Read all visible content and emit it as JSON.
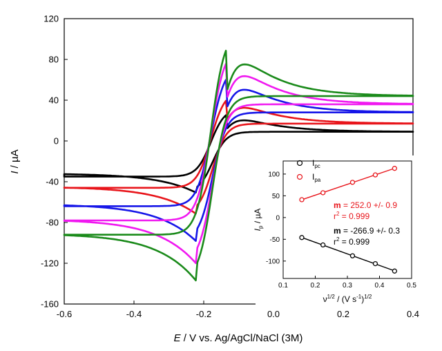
{
  "chart_data": [
    {
      "type": "line",
      "role": "main",
      "xlabel_italic": "E",
      "xlabel": " / V vs. Ag/AgCl/NaCl (3M)",
      "ylabel_italic": "I",
      "ylabel": " / µA",
      "xlim": [
        -0.6,
        0.4
      ],
      "ylim": [
        -160,
        120
      ],
      "xticks": [
        "-0.6",
        "-0.4",
        "-0.2",
        "0.0",
        "0.2",
        "0.4"
      ],
      "yticks": [
        "-160",
        "-120",
        "-80",
        "-40",
        "0",
        "40",
        "80",
        "120"
      ],
      "grid": false,
      "legend": "none",
      "series": [
        {
          "color": "#000000",
          "vertex_pos": {
            "x": 0.4,
            "y": 8
          },
          "vertex_neg": {
            "x": -0.6,
            "y": -35
          },
          "anodic_peak": {
            "x": -0.135,
            "y": 32
          },
          "anodic_end": {
            "x": 0.4,
            "y": 9
          },
          "cathodic_peak": {
            "x": -0.22,
            "y": -51
          },
          "cathodic_end": {
            "x": -0.6,
            "y": -32
          },
          "cathodic_start": {
            "x": 0.4,
            "y": 9
          },
          "anodic_start": {
            "x": -0.6,
            "y": -35
          }
        },
        {
          "color": "#e8141a",
          "vertex_pos": {
            "x": 0.4,
            "y": 16
          },
          "vertex_neg": {
            "x": -0.6,
            "y": -46
          },
          "anodic_peak": {
            "x": -0.135,
            "y": 49
          },
          "anodic_end": {
            "x": 0.4,
            "y": 17
          },
          "cathodic_peak": {
            "x": -0.22,
            "y": -72
          },
          "cathodic_end": {
            "x": -0.6,
            "y": -45
          },
          "cathodic_start": {
            "x": 0.4,
            "y": 17
          },
          "anodic_start": {
            "x": -0.6,
            "y": -46
          }
        },
        {
          "color": "#1515e8",
          "vertex_pos": {
            "x": 0.4,
            "y": 28
          },
          "vertex_neg": {
            "x": -0.6,
            "y": -64
          },
          "anodic_peak": {
            "x": -0.135,
            "y": 74
          },
          "anodic_end": {
            "x": 0.4,
            "y": 28
          },
          "cathodic_peak": {
            "x": -0.22,
            "y": -99
          },
          "cathodic_end": {
            "x": -0.6,
            "y": -62
          },
          "cathodic_start": {
            "x": 0.4,
            "y": 28
          },
          "anodic_start": {
            "x": -0.6,
            "y": -64
          }
        },
        {
          "color": "#f018f0",
          "vertex_pos": {
            "x": 0.4,
            "y": 36
          },
          "vertex_neg": {
            "x": -0.6,
            "y": -78
          },
          "anodic_peak": {
            "x": -0.135,
            "y": 93
          },
          "anodic_end": {
            "x": 0.4,
            "y": 36
          },
          "cathodic_peak": {
            "x": -0.22,
            "y": -121
          },
          "cathodic_end": {
            "x": -0.6,
            "y": -77
          },
          "cathodic_start": {
            "x": 0.4,
            "y": 36
          },
          "anodic_start": {
            "x": -0.6,
            "y": -78
          }
        },
        {
          "color": "#1a8a1a",
          "vertex_pos": {
            "x": 0.4,
            "y": 44
          },
          "vertex_neg": {
            "x": -0.6,
            "y": -92
          },
          "anodic_peak": {
            "x": -0.135,
            "y": 109
          },
          "anodic_end": {
            "x": 0.4,
            "y": 44
          },
          "cathodic_peak": {
            "x": -0.22,
            "y": -138
          },
          "cathodic_end": {
            "x": -0.6,
            "y": -91
          },
          "cathodic_start": {
            "x": 0.4,
            "y": 44
          },
          "anodic_start": {
            "x": -0.6,
            "y": -92
          }
        }
      ]
    },
    {
      "type": "scatter",
      "role": "inset",
      "xlabel": "ν",
      "xlabel_sup1": "1/2",
      "xlabel_mid": " / (V s",
      "xlabel_sup2": "-1",
      "xlabel_end": ")",
      "xlabel_sup3": "1/2",
      "ylabel_italic": "I",
      "ylabel_sub": "p",
      "ylabel": " / µA",
      "xlim": [
        0.1,
        0.5
      ],
      "ylim": [
        -140,
        130
      ],
      "xticks": [
        "0.1",
        "0.2",
        "0.3",
        "0.4",
        "0.5"
      ],
      "yticks": [
        "-100",
        "-50",
        "0",
        "50",
        "100"
      ],
      "legend": "top-left",
      "series": [
        {
          "name": "I",
          "name_sub": "pc",
          "color": "#000000",
          "x": [
            0.158,
            0.224,
            0.316,
            0.387,
            0.447
          ],
          "y": [
            -46,
            -63,
            -88,
            -106,
            -123
          ],
          "fit_label_m": "m",
          "fit_text_m": " = -266.9 +/- 0.3",
          "fit_label_r": "r",
          "fit_text_r": " = 0.999",
          "r_sup": "2"
        },
        {
          "name": "I",
          "name_sub": "pa",
          "color": "#e8141a",
          "x": [
            0.158,
            0.224,
            0.316,
            0.387,
            0.447
          ],
          "y": [
            41,
            57,
            81,
            98,
            113
          ],
          "fit_label_m": "m",
          "fit_text_m": " = 252.0 +/- 0.9",
          "fit_label_r": "r",
          "fit_text_r": " = 0.999",
          "r_sup": "2"
        }
      ]
    }
  ]
}
